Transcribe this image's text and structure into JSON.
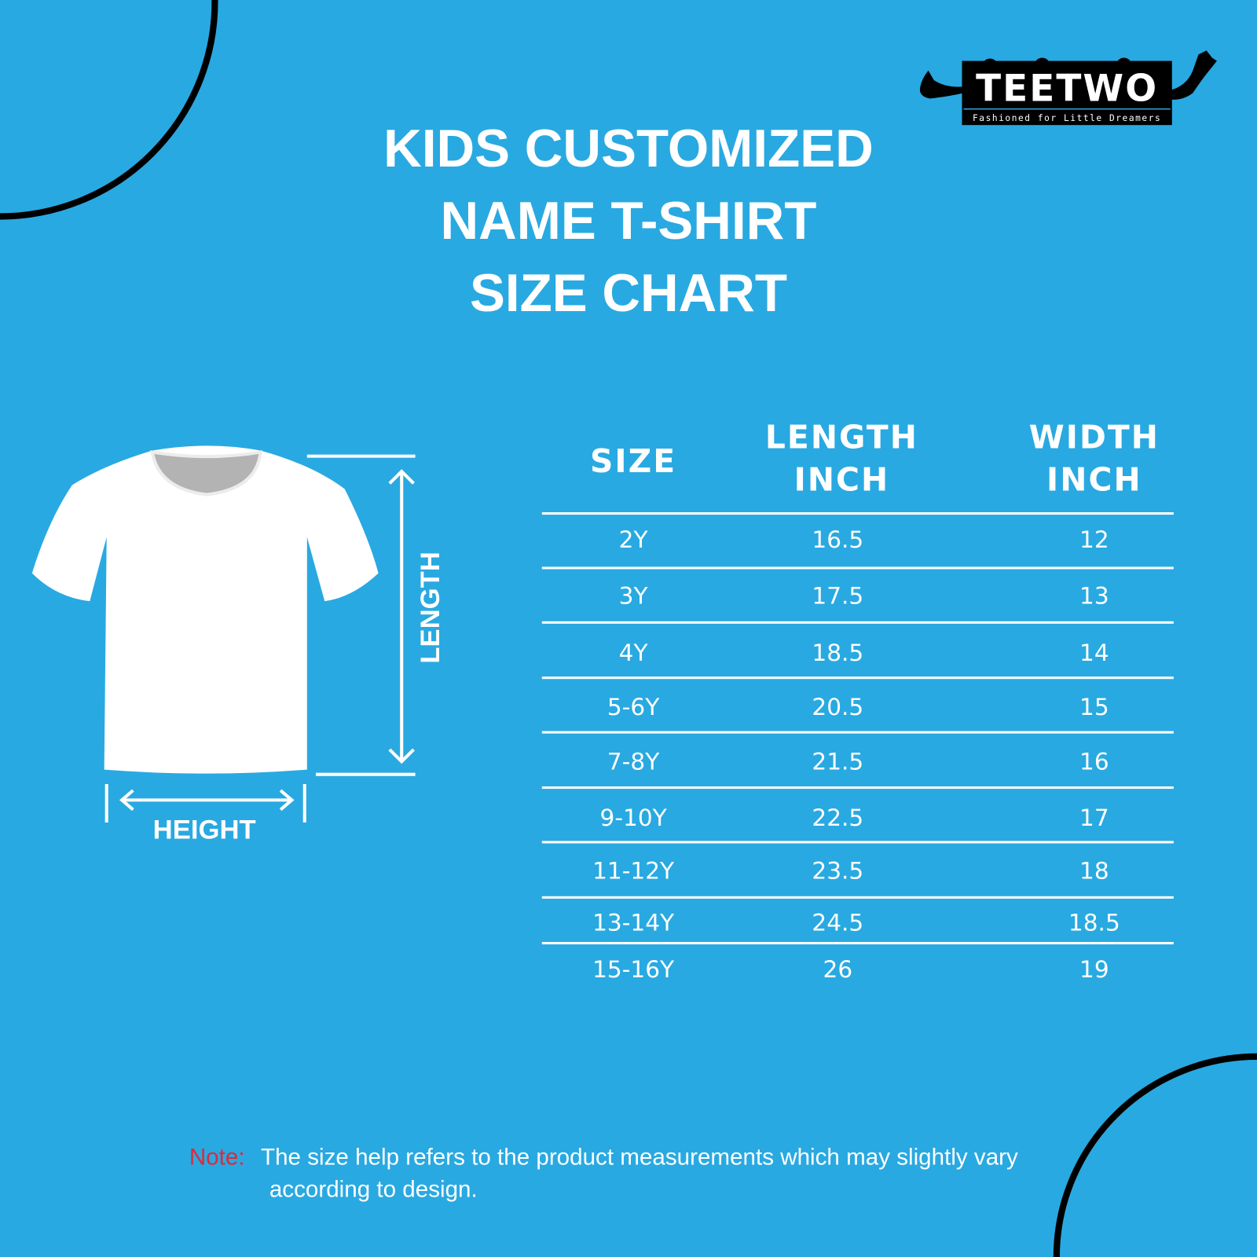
{
  "brand": {
    "logo_text": "TEETWO",
    "tagline": "Fashioned for Little Dreamers"
  },
  "title_lines": [
    "KIDS CUSTOMIZED",
    "NAME T-SHIRT",
    "SIZE CHART"
  ],
  "diagram": {
    "length_label": "LENGTH",
    "height_label": "HEIGHT"
  },
  "table": {
    "headers": [
      {
        "line1": "SIZE",
        "line2": ""
      },
      {
        "line1": "LENGTH",
        "line2": "INCH"
      },
      {
        "line1": "WIDTH",
        "line2": "INCH"
      }
    ],
    "rows": [
      [
        "2Y",
        "16.5",
        "12"
      ],
      [
        "3Y",
        "17.5",
        "13"
      ],
      [
        "4Y",
        "18.5",
        "14"
      ],
      [
        "5-6Y",
        "20.5",
        "15"
      ],
      [
        "7-8Y",
        "21.5",
        "16"
      ],
      [
        "9-10Y",
        "22.5",
        "17"
      ],
      [
        "11-12Y",
        "23.5",
        "18"
      ],
      [
        "13-14Y",
        "24.5",
        "18.5"
      ],
      [
        "15-16Y",
        "26",
        "19"
      ]
    ]
  },
  "note": {
    "label": "Note:",
    "text": "The size help refers to the product measurements which may slightly vary",
    "text2": "according to design."
  },
  "colors": {
    "background": "#29a9e1",
    "note_label": "#e0283a",
    "text": "#ffffff",
    "corner_arcs": "#000000"
  }
}
